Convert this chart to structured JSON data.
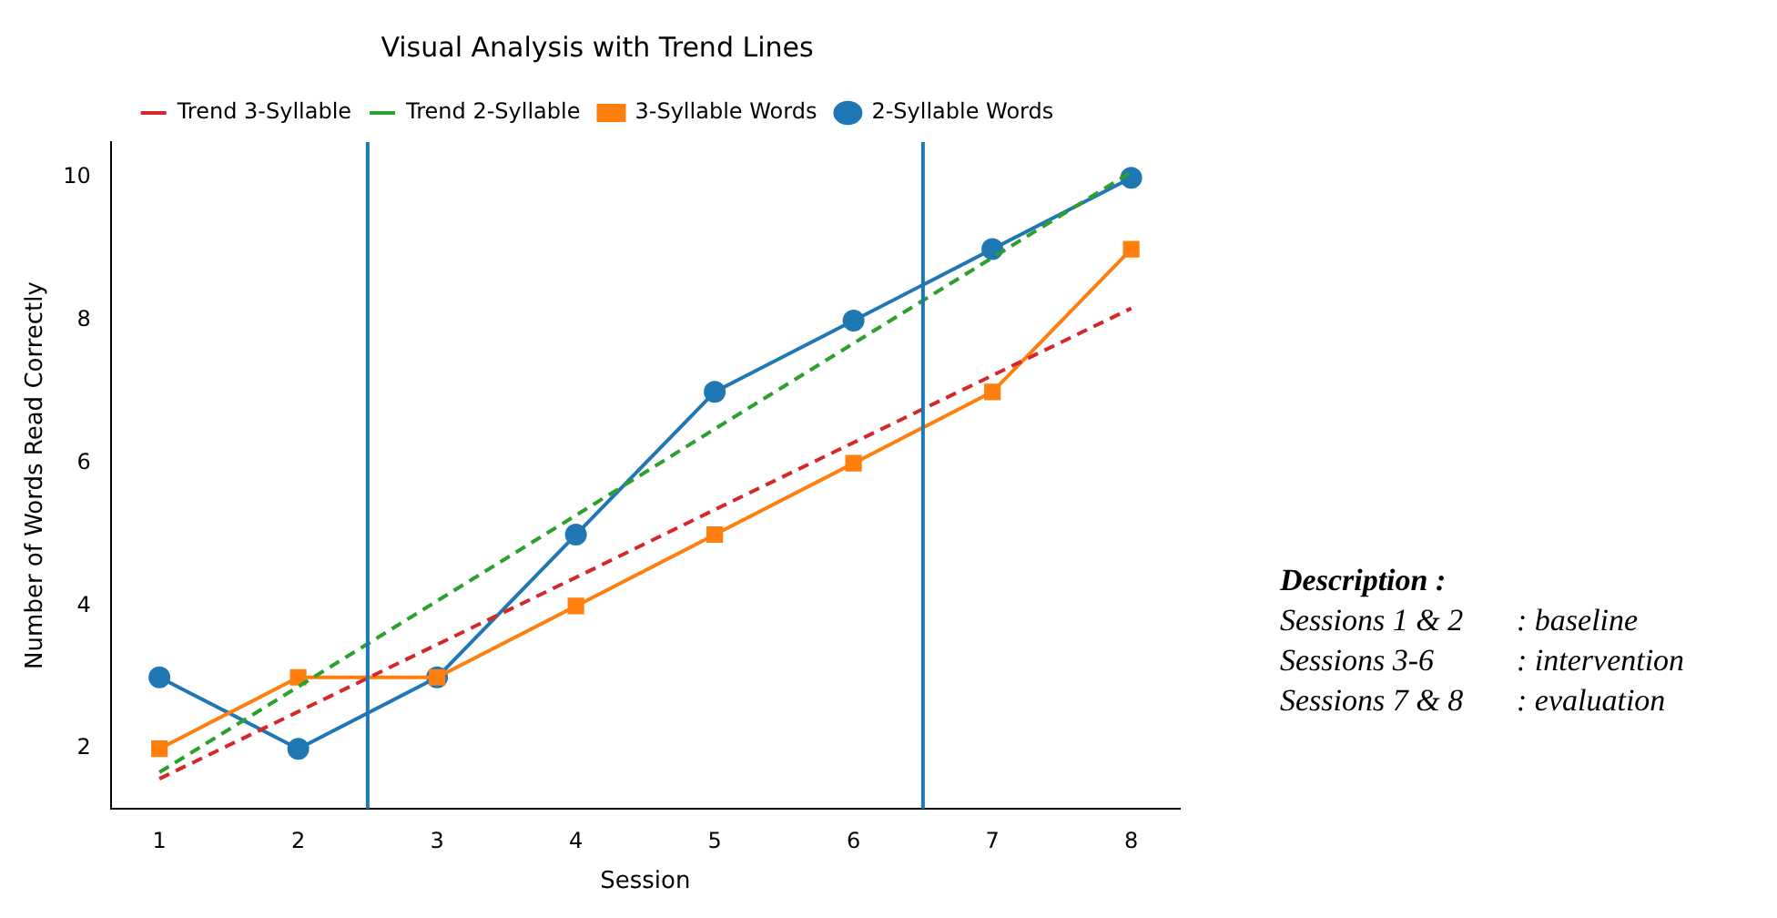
{
  "chart_data": {
    "type": "line",
    "title": "Visual Analysis with Trend Lines",
    "xlabel": "Session",
    "ylabel": "Number of Words Read Correctly",
    "x": [
      1,
      2,
      3,
      4,
      5,
      6,
      7,
      8
    ],
    "series": [
      {
        "name": "2-Syllable Words",
        "color": "#1f77b4",
        "values": [
          3,
          2,
          3,
          5,
          7,
          8,
          9,
          10
        ],
        "marker": "circle",
        "line_style": "solid"
      },
      {
        "name": "3-Syllable Words",
        "color": "#ff7f0e",
        "values": [
          2,
          3,
          3,
          4,
          5,
          6,
          7,
          9
        ],
        "marker": "square",
        "line_style": "solid"
      },
      {
        "name": "Trend 2-Syllable",
        "color": "#2ca02c",
        "values": [
          1.67,
          2.87,
          4.07,
          5.27,
          6.48,
          7.68,
          8.88,
          10.08
        ],
        "marker": "none",
        "line_style": "dashed"
      },
      {
        "name": "Trend 3-Syllable",
        "color": "#d62728",
        "values": [
          1.58,
          2.52,
          3.46,
          4.4,
          5.35,
          6.29,
          7.23,
          8.17
        ],
        "marker": "none",
        "line_style": "dashed"
      }
    ],
    "xlim": [
      0.65,
      8.35
    ],
    "xticks": [
      1,
      2,
      3,
      4,
      5,
      6,
      7,
      8
    ],
    "ylim": [
      1.16,
      10.5
    ],
    "yticks": [
      2,
      4,
      6,
      8,
      10
    ],
    "ref_lines": [
      {
        "axis": "x",
        "value": 2.5,
        "color": "#1f77b4"
      },
      {
        "axis": "x",
        "value": 6.5,
        "color": "#1f77b4"
      }
    ],
    "grid": false,
    "legend": "top",
    "annotations": [
      "Description :",
      "Sessions 1 & 2\t: baseline",
      "Sessions 3-6\t: intervention",
      "Sessions 7 & 8\t: evaluation"
    ]
  }
}
